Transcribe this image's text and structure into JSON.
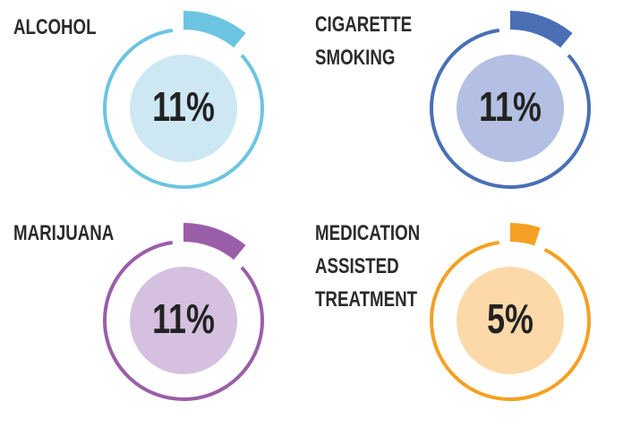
{
  "chart_data": [
    {
      "type": "gauge",
      "title": "ALCOHOL",
      "values": [
        11
      ],
      "value_labels": [
        "11%"
      ],
      "color": "#6cc5e0",
      "inner_color": "#cde8f3"
    },
    {
      "type": "gauge",
      "title": "CIGARETTE SMOKING",
      "values": [
        11
      ],
      "value_labels": [
        "11%"
      ],
      "color": "#4a6fb5",
      "inner_color": "#b4c0e3"
    },
    {
      "type": "gauge",
      "title": "MARIJUANA",
      "values": [
        11
      ],
      "value_labels": [
        "11%"
      ],
      "color": "#9a5ea8",
      "inner_color": "#d5c0df"
    },
    {
      "type": "gauge",
      "title": "MEDICATION ASSISTED TREATMENT",
      "values": [
        5
      ],
      "value_labels": [
        "5%"
      ],
      "color": "#f5a023",
      "inner_color": "#fdd9aa"
    }
  ]
}
